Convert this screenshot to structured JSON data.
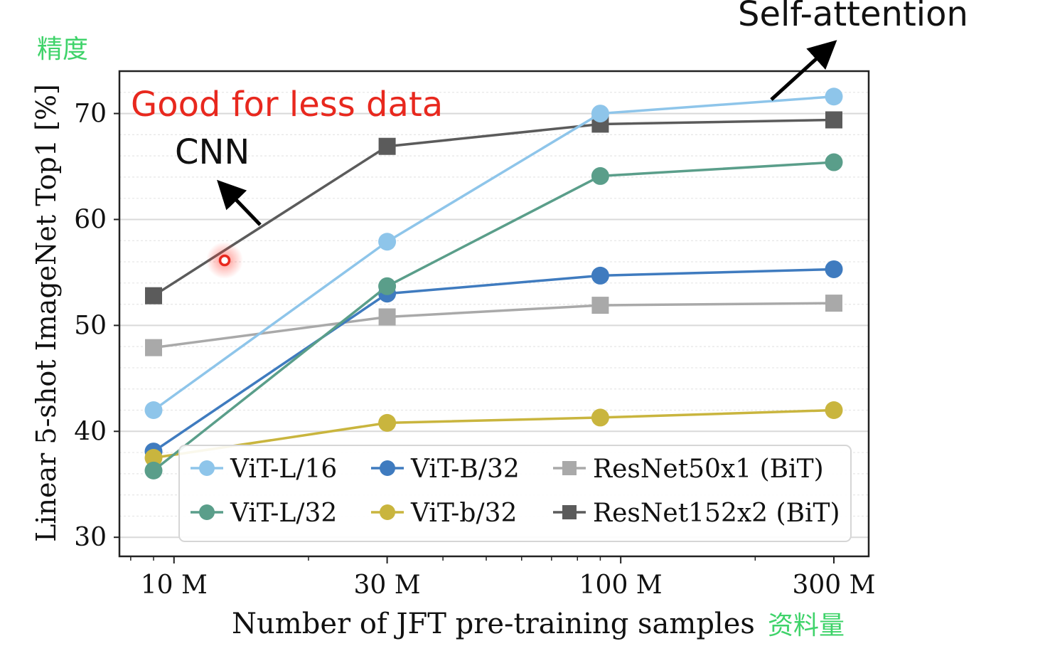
{
  "annotations": {
    "top_left_cn": "精度",
    "bottom_right_cn": "资料量",
    "self_attention": "Self-attention",
    "good_for_less_data": "Good for less data",
    "cnn": "CNN"
  },
  "colors": {
    "vit_l16": "#8ec5ea",
    "vit_b32": "#3f7bbf",
    "vit_l32": "#5a9e8a",
    "vit_b32_small": "#c9b53e",
    "resnet50": "#a9a9a9",
    "resnet152": "#5b5b5b",
    "annotation_red": "#e8281e",
    "annotation_green": "#3fd36a"
  },
  "chart_data": {
    "type": "line",
    "xlabel": "Number of JFT pre-training samples",
    "ylabel": "Linear 5-shot ImageNet Top1 [%]",
    "x_scale": "log",
    "x": [
      9,
      30,
      90,
      300
    ],
    "xticks": [
      10,
      30,
      100,
      300
    ],
    "xtick_labels": [
      "10 M",
      "30 M",
      "100 M",
      "300 M"
    ],
    "ylim": [
      28.2,
      74
    ],
    "yticks": [
      30,
      40,
      50,
      60,
      70
    ],
    "ytick_labels": [
      "30",
      "40",
      "50",
      "60",
      "70"
    ],
    "grid": true,
    "legend_position": "bottom-right",
    "series": [
      {
        "name": "ViT-L/16",
        "values": [
          42.0,
          57.9,
          70.0,
          71.6
        ],
        "marker": "circle",
        "color": "#8ec5ea"
      },
      {
        "name": "ViT-B/32",
        "values": [
          38.1,
          53.0,
          54.7,
          55.3
        ],
        "marker": "circle",
        "color": "#3f7bbf"
      },
      {
        "name": "ResNet50x1 (BiT)",
        "values": [
          47.9,
          50.8,
          51.9,
          52.1
        ],
        "marker": "square",
        "color": "#a9a9a9"
      },
      {
        "name": "ViT-L/32",
        "values": [
          36.3,
          53.7,
          64.1,
          65.4
        ],
        "marker": "circle",
        "color": "#5a9e8a"
      },
      {
        "name": "ViT-b/32",
        "values": [
          37.5,
          40.8,
          41.3,
          42.0
        ],
        "marker": "circle",
        "color": "#c9b53e"
      },
      {
        "name": "ResNet152x2 (BiT)",
        "values": [
          52.8,
          66.9,
          69.0,
          69.4
        ],
        "marker": "square",
        "color": "#5b5b5b"
      }
    ]
  }
}
